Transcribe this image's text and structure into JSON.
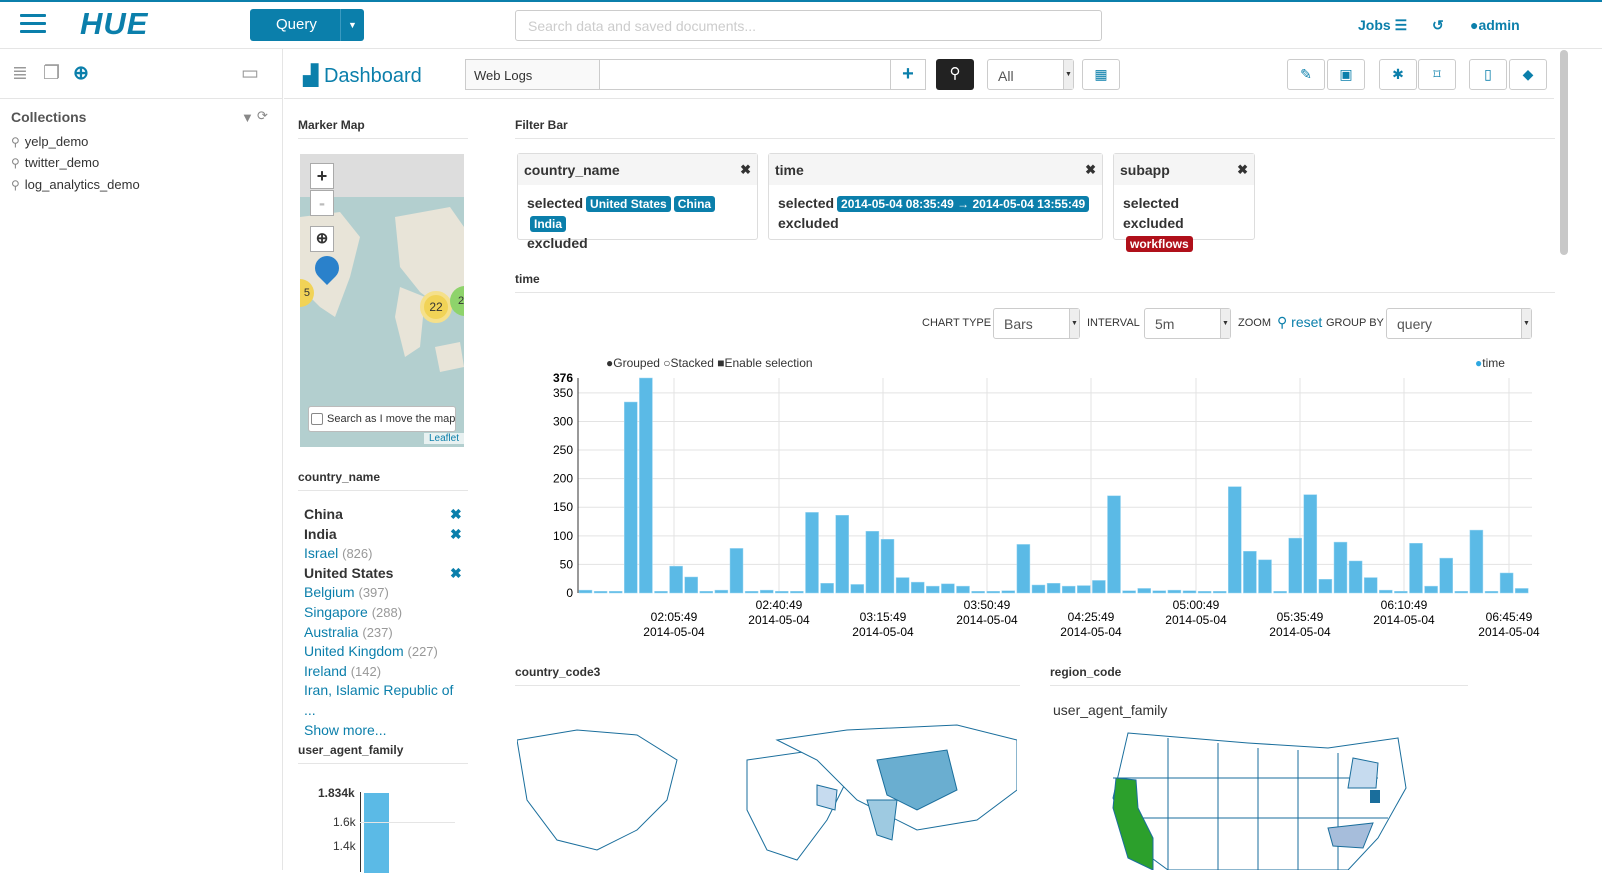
{
  "topbar": {
    "logo": "HUE",
    "query_button": "Query",
    "search_placeholder": "Search data and saved documents...",
    "jobs": "Jobs",
    "user": "admin"
  },
  "sidebar": {
    "collections_title": "Collections",
    "collections": [
      "yelp_demo",
      "twitter_demo",
      "log_analytics_demo"
    ]
  },
  "dashboard": {
    "title": "Dashboard",
    "collection": "Web Logs",
    "query_value": "",
    "date_filter": "All"
  },
  "marker_map": {
    "title": "Marker Map",
    "cluster_labels": [
      "5",
      "22",
      "2"
    ],
    "search_as_move": "Search as I move the map",
    "attribution": "Leaflet",
    "zoom_in": "+",
    "zoom_out": "-"
  },
  "filter_bar": {
    "title": "Filter Bar",
    "filters": [
      {
        "field": "country_name",
        "selected_label": "selected",
        "excluded_label": "excluded",
        "selected": [
          "United States",
          "China",
          "India"
        ],
        "excluded": []
      },
      {
        "field": "time",
        "selected_label": "selected",
        "excluded_label": "excluded",
        "selected": [
          "2014-05-04  08:35:49 → 2014-05-04  13:55:49"
        ],
        "excluded": []
      },
      {
        "field": "subapp",
        "selected_label": "selected",
        "excluded_label": "excluded",
        "selected": [],
        "excluded": [
          "workflows"
        ]
      }
    ]
  },
  "country_facet": {
    "title": "country_name",
    "items": [
      {
        "label": "China",
        "selected": true
      },
      {
        "label": "India",
        "selected": true
      },
      {
        "label": "Israel",
        "count": "(826)"
      },
      {
        "label": "United States",
        "selected": true
      },
      {
        "label": "Belgium",
        "count": "(397)"
      },
      {
        "label": "Singapore",
        "count": "(288)"
      },
      {
        "label": "Australia",
        "count": "(237)"
      },
      {
        "label": "United Kingdom",
        "count": "(227)"
      },
      {
        "label": "Ireland",
        "count": "(142)"
      },
      {
        "label": "Iran, Islamic Republic of ..."
      }
    ],
    "show_more": "Show more..."
  },
  "ua_facet": {
    "title": "user_agent_family",
    "ticks": [
      "1.834k",
      "1.6k",
      "1.4k"
    ]
  },
  "time_widget": {
    "title": "time",
    "chart_type_label": "CHART TYPE",
    "chart_type": "Bars",
    "interval_label": "INTERVAL",
    "interval": "5m",
    "zoom_label": "ZOOM",
    "reset": "reset",
    "group_by_label": "GROUP BY",
    "group_by": "query",
    "options": {
      "grouped": "Grouped",
      "stacked": "Stacked",
      "enable_selection": "Enable selection"
    }
  },
  "country_code3": {
    "title": "country_code3"
  },
  "region_code": {
    "title": "region_code",
    "subtitle": "user_agent_family"
  },
  "colors": {
    "accent": "#0b7fab",
    "bar": "#5bbae6",
    "excluded": "#b0101a",
    "map_green": "#2ca02c"
  },
  "chart_data": {
    "type": "bar",
    "legend": [
      "time"
    ],
    "legend_position": "top-right",
    "grid": true,
    "ylim": [
      0,
      376
    ],
    "yticks": [
      0,
      50,
      100,
      150,
      200,
      250,
      300,
      350,
      376
    ],
    "xticks": [
      [
        "02:05:49",
        "2014-05-04"
      ],
      [
        "02:40:49",
        "2014-05-04"
      ],
      [
        "03:15:49",
        "2014-05-04"
      ],
      [
        "03:50:49",
        "2014-05-04"
      ],
      [
        "04:25:49",
        "2014-05-04"
      ],
      [
        "05:00:49",
        "2014-05-04"
      ],
      [
        "05:35:49",
        "2014-05-04"
      ],
      [
        "06:10:49",
        "2014-05-04"
      ],
      [
        "06:45:49",
        "2014-05-04"
      ]
    ],
    "x": [
      "01:35",
      "01:40",
      "01:45",
      "01:50",
      "01:55",
      "02:00",
      "02:05",
      "02:10",
      "02:15",
      "02:20",
      "02:25",
      "02:30",
      "02:35",
      "02:40",
      "02:45",
      "02:50",
      "02:55",
      "03:00",
      "03:05",
      "03:10",
      "03:15",
      "03:20",
      "03:25",
      "03:30",
      "03:35",
      "03:40",
      "03:45",
      "03:50",
      "03:55",
      "04:00",
      "04:05",
      "04:10",
      "04:15",
      "04:20",
      "04:25",
      "04:30",
      "04:35",
      "04:40",
      "04:45",
      "04:50",
      "04:55",
      "05:00",
      "05:05",
      "05:10",
      "05:15",
      "05:20",
      "05:25",
      "05:30",
      "05:35",
      "05:40",
      "05:45",
      "05:50",
      "05:55",
      "06:00",
      "06:05",
      "06:10",
      "06:15",
      "06:20",
      "06:25",
      "06:30",
      "06:35",
      "06:40",
      "06:45"
    ],
    "values": [
      5,
      3,
      3,
      334,
      376,
      3,
      47,
      28,
      3,
      5,
      78,
      3,
      5,
      3,
      3,
      141,
      17,
      136,
      15,
      108,
      94,
      27,
      19,
      12,
      16,
      12,
      3,
      3,
      4,
      85,
      14,
      17,
      12,
      13,
      22,
      170,
      4,
      8,
      4,
      5,
      4,
      3,
      3,
      186,
      73,
      58,
      3,
      96,
      172,
      24,
      89,
      56,
      27,
      5,
      3,
      87,
      12,
      61,
      3,
      110,
      3,
      35,
      8
    ]
  }
}
